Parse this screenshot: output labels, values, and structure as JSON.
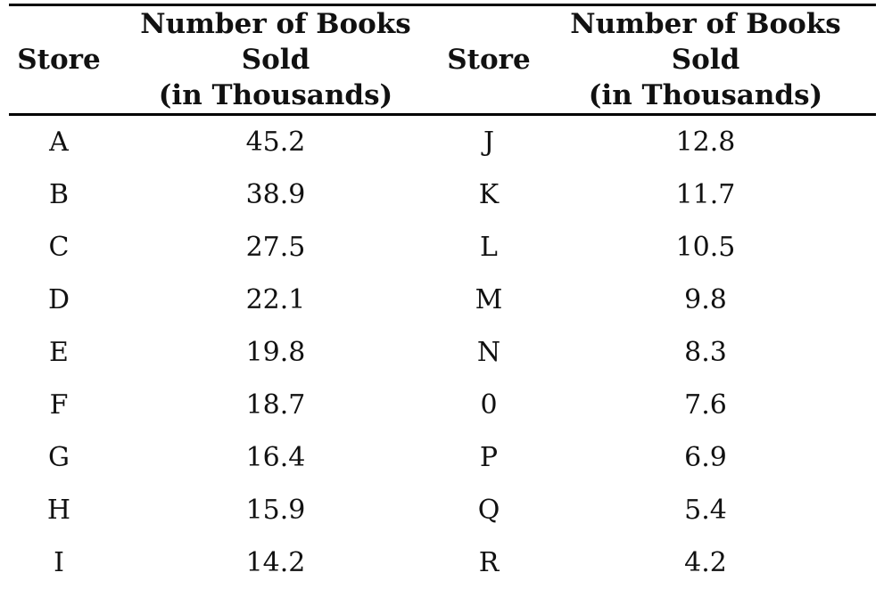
{
  "table": {
    "headers": [
      {
        "line1": "Store"
      },
      {
        "line1": "Number of Books Sold",
        "line2": "(in Thousands)"
      },
      {
        "line1": "Store"
      },
      {
        "line1": "Number of Books Sold",
        "line2": "(in Thousands)"
      }
    ],
    "rows": [
      [
        "A",
        "45.2",
        "J",
        "12.8"
      ],
      [
        "B",
        "38.9",
        "K",
        "11.7"
      ],
      [
        "C",
        "27.5",
        "L",
        "10.5"
      ],
      [
        "D",
        "22.1",
        "M",
        "9.8"
      ],
      [
        "E",
        "19.8",
        "N",
        "8.3"
      ],
      [
        "F",
        "18.7",
        "0",
        "7.6"
      ],
      [
        "G",
        "16.4",
        "P",
        "6.9"
      ],
      [
        "H",
        "15.9",
        "Q",
        "5.4"
      ],
      [
        "I",
        "14.2",
        "R",
        "4.2"
      ]
    ]
  }
}
